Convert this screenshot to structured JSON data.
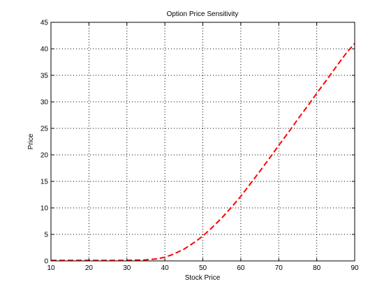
{
  "chart_data": {
    "type": "line",
    "title": "Option Price Sensitivity",
    "xlabel": "Stock Price",
    "ylabel": "Price",
    "xlim": [
      10,
      90
    ],
    "ylim": [
      0,
      45
    ],
    "xticks": [
      "10",
      "20",
      "30",
      "40",
      "50",
      "60",
      "70",
      "80",
      "90"
    ],
    "yticks": [
      "0",
      "5",
      "10",
      "15",
      "20",
      "25",
      "30",
      "35",
      "40",
      "45"
    ],
    "grid": true,
    "series": [
      {
        "color": "#ff0000",
        "line_style": "dashed",
        "x": [
          10,
          15,
          20,
          25,
          30,
          35,
          38,
          40,
          42,
          45,
          48,
          50,
          52,
          55,
          58,
          60,
          63,
          65,
          68,
          70,
          73,
          75,
          78,
          80,
          83,
          85,
          88,
          90
        ],
        "y": [
          0.1,
          0.1,
          0.1,
          0.1,
          0.1,
          0.2,
          0.4,
          0.7,
          1.2,
          2.2,
          3.6,
          4.7,
          6.0,
          8.1,
          10.5,
          12.2,
          15.0,
          16.9,
          19.8,
          21.8,
          24.7,
          26.7,
          29.6,
          31.6,
          34.5,
          36.5,
          39.4,
          41.0
        ]
      }
    ]
  }
}
